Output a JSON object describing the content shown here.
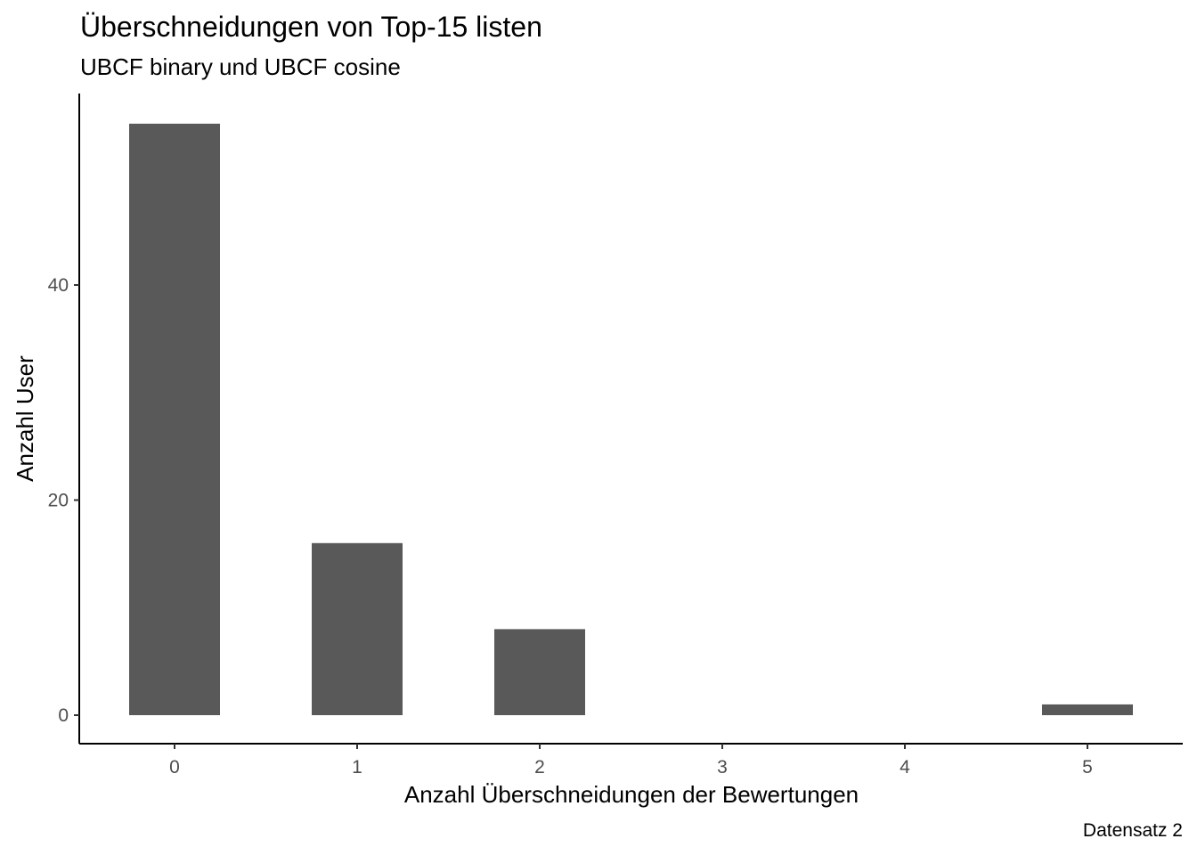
{
  "chart_data": {
    "type": "bar",
    "title": "Überschneidungen von Top-15 listen",
    "subtitle": "UBCF binary und UBCF cosine",
    "caption": "Datensatz 2",
    "xlabel": "Anzahl Überschneidungen der Bewertungen",
    "ylabel": "Anzahl User",
    "categories": [
      "0",
      "1",
      "2",
      "3",
      "4",
      "5"
    ],
    "values": [
      55,
      16,
      8,
      0,
      0,
      1
    ],
    "x_ticks": [
      "0",
      "1",
      "2",
      "3",
      "4",
      "5"
    ],
    "y_ticks": [
      "0",
      "20",
      "40"
    ],
    "ylim": [
      0,
      57.75
    ],
    "grid": false,
    "legend": "none",
    "bar_color": "#595959",
    "axis_color": "#000000",
    "tick_label_color": "#4d4d4d"
  }
}
